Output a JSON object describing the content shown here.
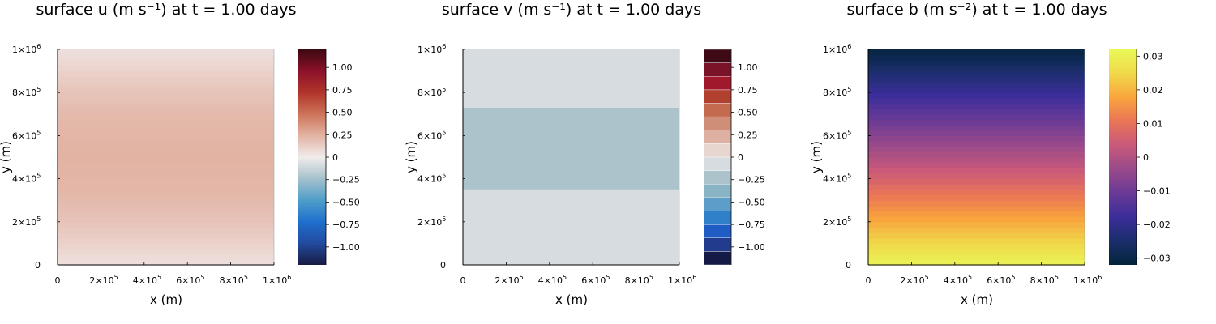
{
  "chart_data": [
    {
      "type": "heatmap",
      "title": "surface u (m s⁻¹) at t = 1.00 days",
      "xlabel": "x (m)",
      "ylabel": "y (m)",
      "xlim": [
        0,
        1000000
      ],
      "ylim": [
        0,
        1000000
      ],
      "x_ticks": [
        {
          "base": "0",
          "exp": ""
        },
        {
          "base": "2×10",
          "exp": "5"
        },
        {
          "base": "4×10",
          "exp": "5"
        },
        {
          "base": "6×10",
          "exp": "5"
        },
        {
          "base": "8×10",
          "exp": "5"
        },
        {
          "base": "1×10",
          "exp": "6"
        }
      ],
      "y_ticks": [
        {
          "base": "0",
          "exp": ""
        },
        {
          "base": "2×10",
          "exp": "5"
        },
        {
          "base": "4×10",
          "exp": "5"
        },
        {
          "base": "6×10",
          "exp": "5"
        },
        {
          "base": "8×10",
          "exp": "5"
        },
        {
          "base": "1×10",
          "exp": "6"
        }
      ],
      "colormap": "balance",
      "colormap_stops": [
        "#171c42",
        "#224a9e",
        "#1f6fce",
        "#4f9ec9",
        "#a5c1cc",
        "#f1ecec",
        "#e2b3a3",
        "#cd7358",
        "#b0342b",
        "#8c1129",
        "#3c0912"
      ],
      "color_range": [
        -1.2,
        1.2
      ],
      "colorbar_ticks": [
        "−1.00",
        "−0.75",
        "−0.50",
        "−0.25",
        "0",
        "0.25",
        "0.50",
        "0.75",
        "1.00"
      ],
      "colorbar_tick_values": [
        -1.0,
        -0.75,
        -0.5,
        -0.25,
        0,
        0.25,
        0.5,
        0.75,
        1.0
      ],
      "colorbar_style": "continuous",
      "profile_y": [
        0,
        100000,
        200000,
        300000,
        400000,
        500000,
        600000,
        700000,
        800000,
        900000,
        1000000
      ],
      "profile_values": [
        0.05,
        0.11,
        0.17,
        0.21,
        0.23,
        0.24,
        0.23,
        0.21,
        0.17,
        0.11,
        0.05
      ]
    },
    {
      "type": "heatmap",
      "title": "surface v (m s⁻¹) at t = 1.00 days",
      "xlabel": "x (m)",
      "ylabel": "y (m)",
      "xlim": [
        0,
        1000000
      ],
      "ylim": [
        0,
        1000000
      ],
      "x_ticks": [
        {
          "base": "0",
          "exp": ""
        },
        {
          "base": "2×10",
          "exp": "5"
        },
        {
          "base": "4×10",
          "exp": "5"
        },
        {
          "base": "6×10",
          "exp": "5"
        },
        {
          "base": "8×10",
          "exp": "5"
        },
        {
          "base": "1×10",
          "exp": "6"
        }
      ],
      "y_ticks": [
        {
          "base": "0",
          "exp": ""
        },
        {
          "base": "2×10",
          "exp": "5"
        },
        {
          "base": "4×10",
          "exp": "5"
        },
        {
          "base": "6×10",
          "exp": "5"
        },
        {
          "base": "8×10",
          "exp": "5"
        },
        {
          "base": "1×10",
          "exp": "6"
        }
      ],
      "colormap": "balance (discrete levels)",
      "colorbar_levels": [
        "#141a45",
        "#233b8c",
        "#1f5dc4",
        "#2f80c9",
        "#5c9ec9",
        "#88b4c6",
        "#adc3cb",
        "#d6dcdf",
        "#e7d5d0",
        "#ddb0a1",
        "#cf8e78",
        "#c46a4f",
        "#b2402f",
        "#a0182c",
        "#7a1228",
        "#3e0a16"
      ],
      "color_range": [
        -1.2,
        1.2
      ],
      "colorbar_ticks": [
        "−1.00",
        "−0.75",
        "−0.50",
        "−0.25",
        "0",
        "0.25",
        "0.50",
        "0.75",
        "1.00"
      ],
      "colorbar_tick_values": [
        -1.0,
        -0.75,
        -0.5,
        -0.25,
        0,
        0.25,
        0.5,
        0.75,
        1.0
      ],
      "colorbar_style": "discrete",
      "regions": [
        {
          "y_from": 0,
          "y_to": 350000,
          "color": "#d6dcdf"
        },
        {
          "y_from": 350000,
          "y_to": 730000,
          "color": "#adc3cb"
        },
        {
          "y_from": 730000,
          "y_to": 1000000,
          "color": "#d6dcdf"
        }
      ]
    },
    {
      "type": "heatmap",
      "title": "surface b (m s⁻²) at t = 1.00 days",
      "xlabel": "x (m)",
      "ylabel": "y (m)",
      "xlim": [
        0,
        1000000
      ],
      "ylim": [
        0,
        1000000
      ],
      "x_ticks": [
        {
          "base": "0",
          "exp": ""
        },
        {
          "base": "2×10",
          "exp": "5"
        },
        {
          "base": "4×10",
          "exp": "5"
        },
        {
          "base": "6×10",
          "exp": "5"
        },
        {
          "base": "8×10",
          "exp": "5"
        },
        {
          "base": "1×10",
          "exp": "6"
        }
      ],
      "y_ticks": [
        {
          "base": "0",
          "exp": ""
        },
        {
          "base": "2×10",
          "exp": "5"
        },
        {
          "base": "4×10",
          "exp": "5"
        },
        {
          "base": "6×10",
          "exp": "5"
        },
        {
          "base": "8×10",
          "exp": "5"
        },
        {
          "base": "1×10",
          "exp": "6"
        }
      ],
      "colormap": "thermal",
      "colormap_stops": [
        "#03243a",
        "#1b2e6c",
        "#3b2e9a",
        "#6a3a96",
        "#9a4a8a",
        "#c8597a",
        "#ea7556",
        "#f9a53d",
        "#f0d94a",
        "#e9f958"
      ],
      "color_range": [
        -0.032,
        0.032
      ],
      "colorbar_ticks": [
        "−0.03",
        "−0.02",
        "−0.01",
        "0",
        "0.01",
        "0.02",
        "0.03"
      ],
      "colorbar_tick_values": [
        -0.03,
        -0.02,
        -0.01,
        0,
        0.01,
        0.02,
        0.03
      ],
      "colorbar_style": "continuous",
      "profile_y": [
        0,
        1000000
      ],
      "profile_values": [
        0.031,
        -0.031
      ]
    }
  ]
}
